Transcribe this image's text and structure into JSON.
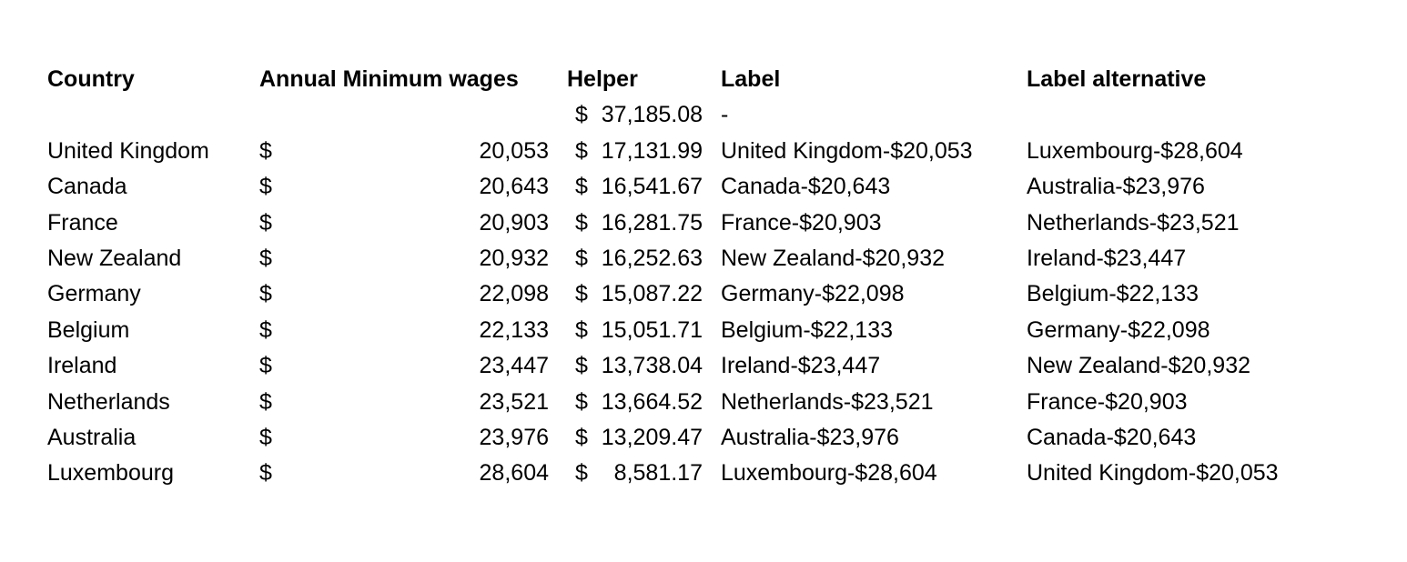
{
  "headers": {
    "country": "Country",
    "wages": "Annual Minimum wages",
    "helper": "Helper",
    "label": "Label",
    "label_alt": "Label alternative"
  },
  "first_row": {
    "helper_currency": "$",
    "helper": "37,185.08",
    "label": "-"
  },
  "rows": [
    {
      "country": "United Kingdom",
      "wage_currency": "$",
      "wage": "20,053",
      "helper_currency": "$",
      "helper": "17,131.99",
      "label": "United Kingdom-$20,053",
      "label_alt": "Luxembourg-$28,604"
    },
    {
      "country": "Canada",
      "wage_currency": "$",
      "wage": "20,643",
      "helper_currency": "$",
      "helper": "16,541.67",
      "label": "Canada-$20,643",
      "label_alt": "Australia-$23,976"
    },
    {
      "country": "France",
      "wage_currency": "$",
      "wage": "20,903",
      "helper_currency": "$",
      "helper": "16,281.75",
      "label": "France-$20,903",
      "label_alt": "Netherlands-$23,521"
    },
    {
      "country": "New Zealand",
      "wage_currency": "$",
      "wage": "20,932",
      "helper_currency": "$",
      "helper": "16,252.63",
      "label": "New Zealand-$20,932",
      "label_alt": "Ireland-$23,447"
    },
    {
      "country": "Germany",
      "wage_currency": "$",
      "wage": "22,098",
      "helper_currency": "$",
      "helper": "15,087.22",
      "label": "Germany-$22,098",
      "label_alt": "Belgium-$22,133"
    },
    {
      "country": "Belgium",
      "wage_currency": "$",
      "wage": "22,133",
      "helper_currency": "$",
      "helper": "15,051.71",
      "label": "Belgium-$22,133",
      "label_alt": "Germany-$22,098"
    },
    {
      "country": "Ireland",
      "wage_currency": "$",
      "wage": "23,447",
      "helper_currency": "$",
      "helper": "13,738.04",
      "label": "Ireland-$23,447",
      "label_alt": "New Zealand-$20,932"
    },
    {
      "country": "Netherlands",
      "wage_currency": "$",
      "wage": "23,521",
      "helper_currency": "$",
      "helper": "13,664.52",
      "label": "Netherlands-$23,521",
      "label_alt": "France-$20,903"
    },
    {
      "country": "Australia",
      "wage_currency": "$",
      "wage": "23,976",
      "helper_currency": "$",
      "helper": "13,209.47",
      "label": "Australia-$23,976",
      "label_alt": "Canada-$20,643"
    },
    {
      "country": "Luxembourg",
      "wage_currency": "$",
      "wage": "28,604",
      "helper_currency": "$",
      "helper": "8,581.17",
      "label": "Luxembourg-$28,604",
      "label_alt": "United Kingdom-$20,053"
    }
  ]
}
